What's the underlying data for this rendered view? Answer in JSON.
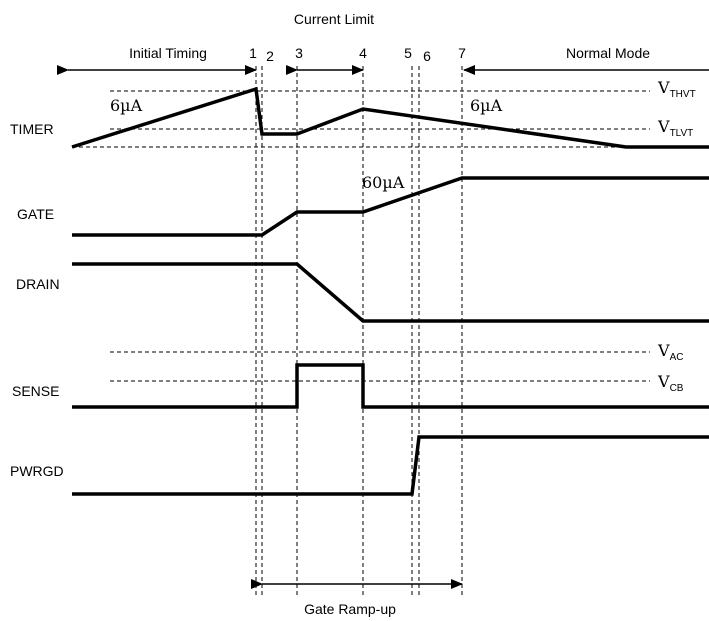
{
  "title": "Current Limit",
  "phases": {
    "initial": "Initial Timing",
    "normal": "Normal Mode",
    "ramp": "Gate Ramp-up"
  },
  "markers": [
    "1",
    "2",
    "3",
    "4",
    "5",
    "6",
    "7"
  ],
  "signals": {
    "timer": "TIMER",
    "gate": "GATE",
    "drain": "DRAIN",
    "sense": "SENSE",
    "pwrgd": "PWRGD"
  },
  "thresholds": {
    "thvt": {
      "base": "V",
      "sub": "THVT"
    },
    "tlvt": {
      "base": "V",
      "sub": "TLVT"
    },
    "ac": {
      "base": "V",
      "sub": "AC"
    },
    "cb": {
      "base": "V",
      "sub": "CB"
    }
  },
  "currents": {
    "charge": "6µA",
    "discharge": "6µA",
    "gate": "60µA"
  }
}
